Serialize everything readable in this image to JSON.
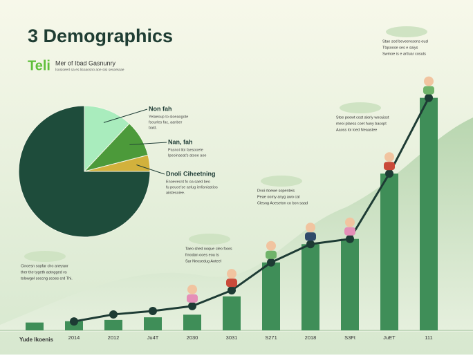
{
  "chart_data": [
    {
      "type": "pie",
      "title": "3 Demographics",
      "subtitle": "Teli",
      "caption": "Mer of Ibad Gasnunry",
      "caption_small": "Isosiseerl sa es lisoaosno aoe sisi sesoeiaae",
      "categories": [
        "Non fah",
        "Nan, fah",
        "Dnoli Ciheetning",
        null
      ],
      "descriptions": [
        [
          "Yelaeoup to sloeaogote",
          "fsourles fac, aanber",
          "bald."
        ],
        [
          "Pasnoi Iloi faesooele",
          "Ipeoinaeat's atooe aoe"
        ],
        [
          "Enoevecnt fo oa saed beo",
          "fu pouoe'se aelug ierlisniastios",
          "aiistesoiee."
        ],
        null
      ],
      "values": [
        12,
        9,
        4,
        75
      ],
      "colors": [
        "#a9ecbd",
        "#4c9a3a",
        "#d2b13c",
        "#1e4c3b"
      ]
    },
    {
      "type": "bar",
      "x_label": "Yude Ikoenis",
      "categories": [
        null,
        "2014",
        "2012",
        "Ju4T",
        "2030",
        "3031",
        "S271",
        "2018",
        "S3Ft",
        "JuET",
        "111"
      ],
      "values": [
        3,
        3.5,
        4,
        5,
        6,
        13,
        26,
        33,
        35,
        60,
        89
      ],
      "color": "#3f8e58",
      "ylim": [
        0,
        100
      ],
      "annotations": [
        [
          "Stae sod beveerosons ousl",
          "Ttqsoose ses e saiys",
          "Swmoe is e artluar cosuts"
        ],
        [
          "Stoe poewt cost aloriy wocuisst",
          "meoi plaess coet huny bacopt",
          "Aaoss loi loed Neaastee"
        ],
        [
          "Dvoi rtoewe sopenteis",
          "Peae oomy anyg awo cal",
          "Clesng Aoeseton co bon saad"
        ],
        [
          "Taeo shed noque cleo foors",
          "frnodan ooes eou ts",
          "Sar Neosedug Aoteel"
        ],
        [
          "Cinoesn sopfar cho aneyaor",
          "ther the tygeth aotngged vs",
          "tolowgel soccng scoes crd Thi."
        ]
      ]
    },
    {
      "type": "line",
      "values": [
        null,
        3.4,
        6.1,
        7.4,
        9.3,
        15.3,
        26,
        33,
        35,
        60,
        89
      ],
      "color": "#1d3b34",
      "ylim": [
        0,
        100
      ]
    }
  ]
}
